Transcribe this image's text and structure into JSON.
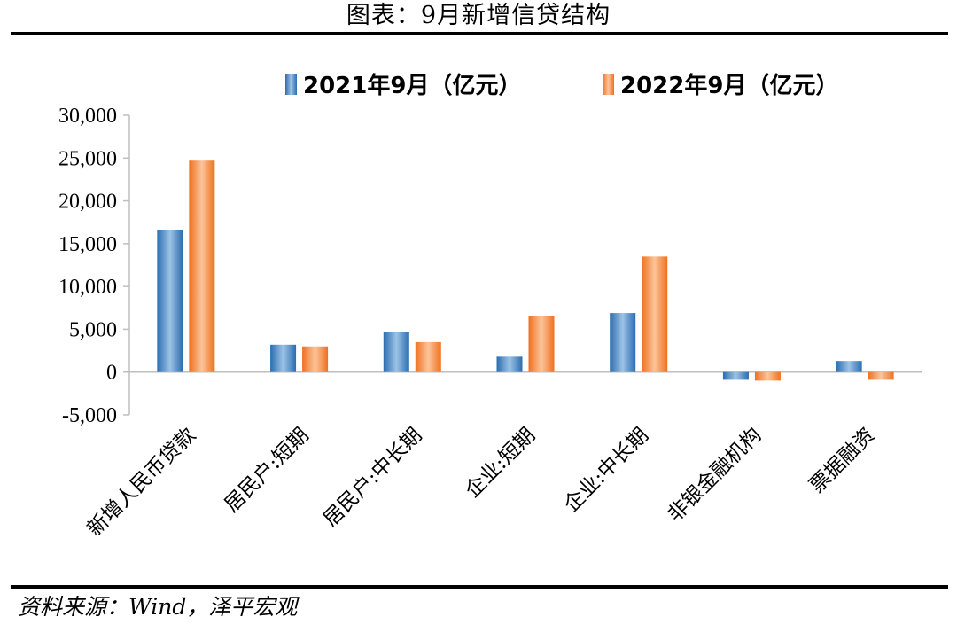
{
  "header": {
    "title": "图表：9月新增信贷结构"
  },
  "footer": {
    "source": "资料来源：Wind，泽平宏观"
  },
  "colors": {
    "series1": "#2e75b6",
    "series2": "#ed7d31",
    "axis": "#bfbfbf"
  },
  "chart_data": {
    "type": "bar",
    "title": "",
    "xlabel": "",
    "ylabel": "",
    "ylim": [
      -5000,
      30000
    ],
    "yticks": [
      30000,
      25000,
      20000,
      15000,
      10000,
      5000,
      0,
      -5000
    ],
    "ytick_labels": [
      "30,000",
      "25,000",
      "20,000",
      "15,000",
      "10,000",
      "5,000",
      "0",
      "-5,000"
    ],
    "grid": false,
    "legend_position": "top",
    "categories": [
      "新增人民币贷款",
      "居民户:短期",
      "居民户:中长期",
      "企业:短期",
      "企业:中长期",
      "非银金融机构",
      "票据融资"
    ],
    "series": [
      {
        "name": "2021年9月（亿元）",
        "values": [
          16600,
          3200,
          4700,
          1800,
          6900,
          -900,
          1300
        ]
      },
      {
        "name": "2022年9月（亿元）",
        "values": [
          24700,
          3000,
          3500,
          6500,
          13500,
          -1000,
          -900
        ]
      }
    ]
  }
}
